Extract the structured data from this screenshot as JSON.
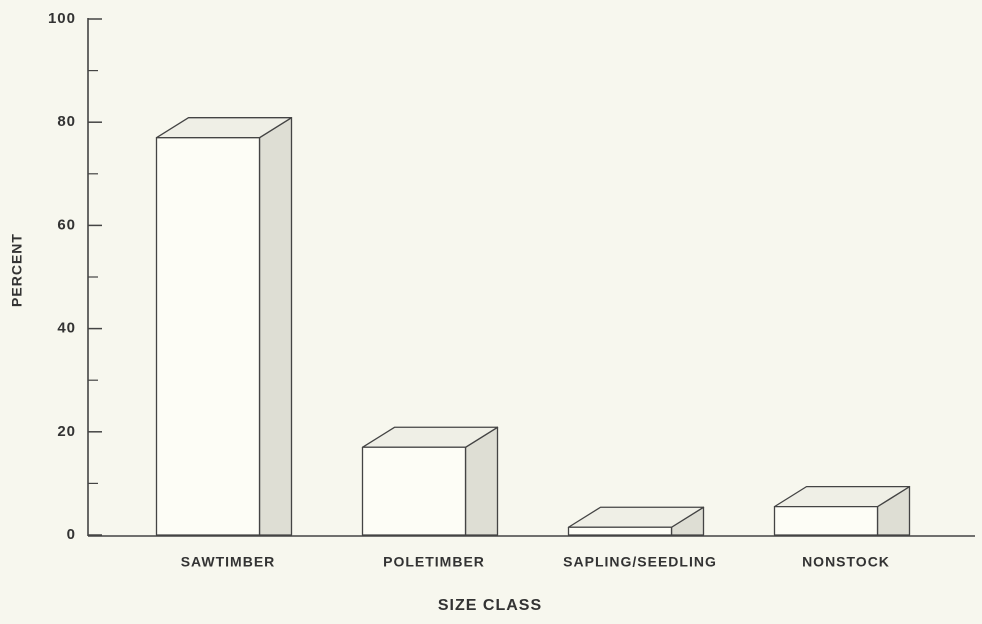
{
  "chart_data": {
    "type": "bar3d",
    "x_label": "SIZE CLASS",
    "y_label": "PERCENT",
    "categories": [
      "SAWTIMBER",
      "POLETIMBER",
      "SAPLING/SEEDLING",
      "NONSTOCK"
    ],
    "values": [
      77,
      17,
      1.5,
      5.5
    ],
    "ylim": [
      0,
      100
    ],
    "yticks": [
      0,
      20,
      40,
      60,
      80,
      100
    ],
    "minor_yticks": [
      10,
      30,
      50,
      70,
      90
    ],
    "front_color": "#fdfdf6",
    "top_color": "#efefe6",
    "side_color": "#deded4"
  }
}
